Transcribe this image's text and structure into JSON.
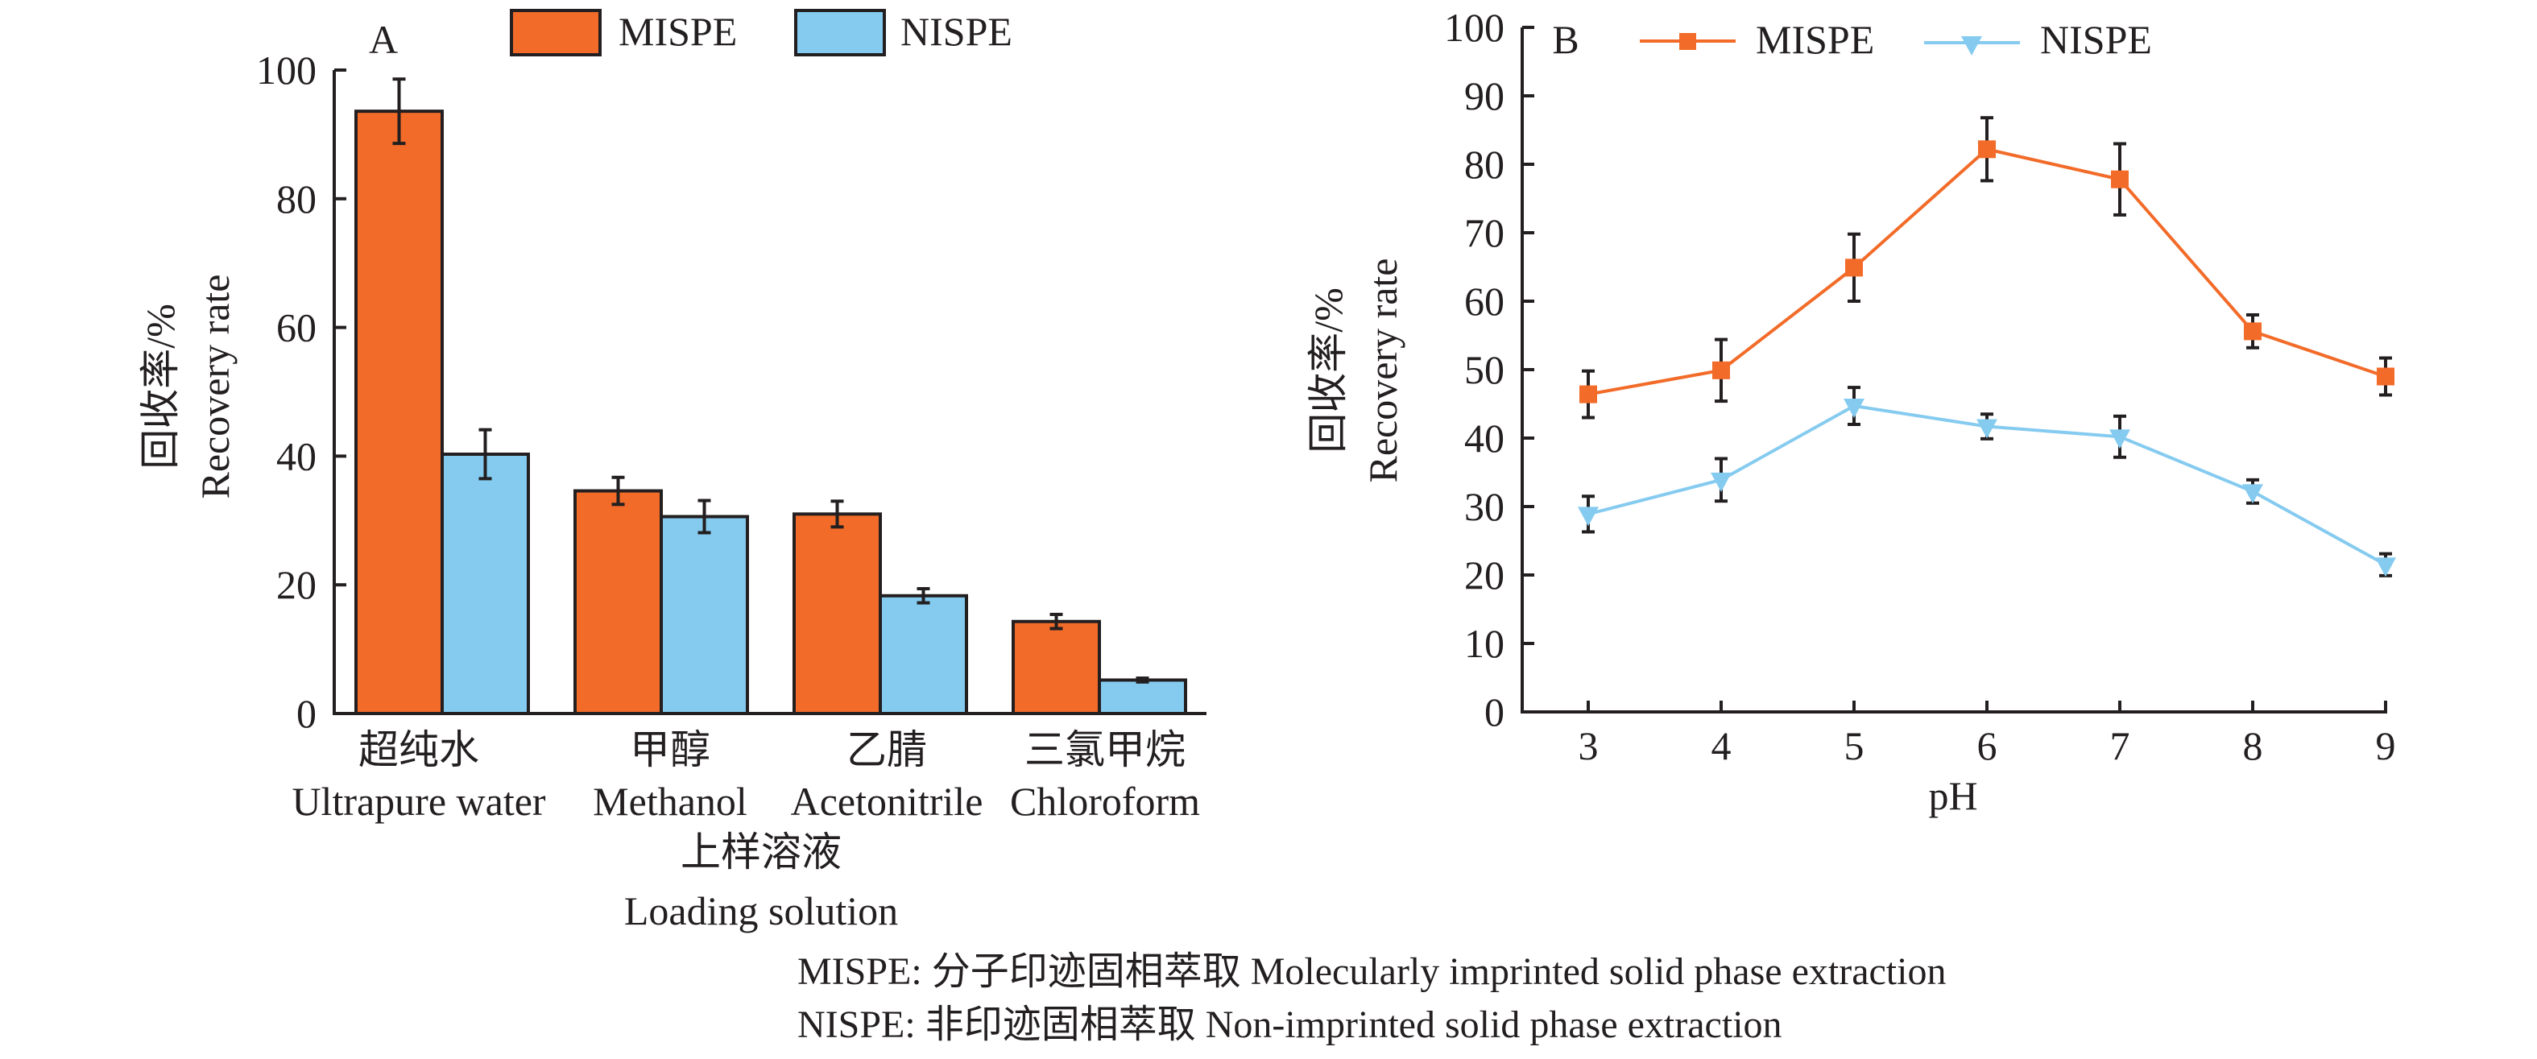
{
  "colors": {
    "mispe": "#F26B29",
    "nispe": "#85CBF0",
    "ink": "#231F20"
  },
  "legend_a": {
    "items": [
      {
        "label": "MISPE",
        "color_key": "mispe"
      },
      {
        "label": "NISPE",
        "color_key": "nispe"
      }
    ]
  },
  "legend_b": {
    "items": [
      {
        "label": "MISPE",
        "marker": "square",
        "color_key": "mispe"
      },
      {
        "label": "NISPE",
        "marker": "triangle-down",
        "color_key": "nispe"
      }
    ]
  },
  "chart_data": [
    {
      "id": "A",
      "type": "bar",
      "panel_label": "A",
      "title": "",
      "categories": [
        "Ultrapure water",
        "Methanol",
        "Acetonitrile",
        "Chloroform"
      ],
      "category_labels_zh": [
        "超纯水",
        "甲醇",
        "乙腈",
        "三氯甲烷"
      ],
      "category_labels_en": [
        "Ultrapure water",
        "Methanol",
        "Acetonitrile",
        "Chloroform"
      ],
      "series": [
        {
          "name": "MISPE",
          "color_key": "mispe",
          "values": [
            93.6,
            34.6,
            31.0,
            14.3
          ],
          "errors": [
            5.0,
            2.1,
            2.0,
            1.1
          ]
        },
        {
          "name": "NISPE",
          "color_key": "nispe",
          "values": [
            40.3,
            30.6,
            18.3,
            5.2
          ],
          "errors": [
            3.8,
            2.5,
            1.1,
            0.3
          ]
        }
      ],
      "xlabel_zh": "上样溶液",
      "xlabel_en": "Loading solution",
      "ylabel_zh": "回收率/%",
      "ylabel_en": "Recovery rate",
      "ylim": [
        0,
        100
      ],
      "yticks": [
        0,
        20,
        40,
        60,
        80,
        100
      ],
      "grid": false,
      "legend_position": "top-center"
    },
    {
      "id": "B",
      "type": "line",
      "panel_label": "B",
      "title": "",
      "x": [
        3,
        4,
        5,
        6,
        7,
        8,
        9
      ],
      "series": [
        {
          "name": "MISPE",
          "marker": "square",
          "color_key": "mispe",
          "values": [
            46.4,
            49.9,
            64.9,
            82.2,
            77.8,
            55.6,
            49.0
          ],
          "errors": [
            3.4,
            4.5,
            4.9,
            4.6,
            5.2,
            2.4,
            2.7
          ]
        },
        {
          "name": "NISPE",
          "marker": "triangle-down",
          "color_key": "nispe",
          "values": [
            28.9,
            33.9,
            44.7,
            41.7,
            40.2,
            32.2,
            21.5
          ],
          "errors": [
            2.6,
            3.1,
            2.7,
            1.8,
            3.0,
            1.7,
            1.6
          ]
        }
      ],
      "xlabel": "pH",
      "ylabel_zh": "回收率/%",
      "ylabel_en": "Recovery rate",
      "xlim": [
        3,
        9
      ],
      "xticks": [
        3,
        4,
        5,
        6,
        7,
        8,
        9
      ],
      "ylim": [
        0,
        100
      ],
      "yticks": [
        0,
        10,
        20,
        30,
        40,
        50,
        60,
        70,
        80,
        90,
        100
      ],
      "grid": false,
      "legend_position": "top"
    }
  ],
  "footer": {
    "lines": [
      "MISPE: 分子印迹固相萃取 Molecularly imprinted solid phase extraction",
      "NISPE: 非印迹固相萃取 Non-imprinted solid phase extraction"
    ]
  }
}
